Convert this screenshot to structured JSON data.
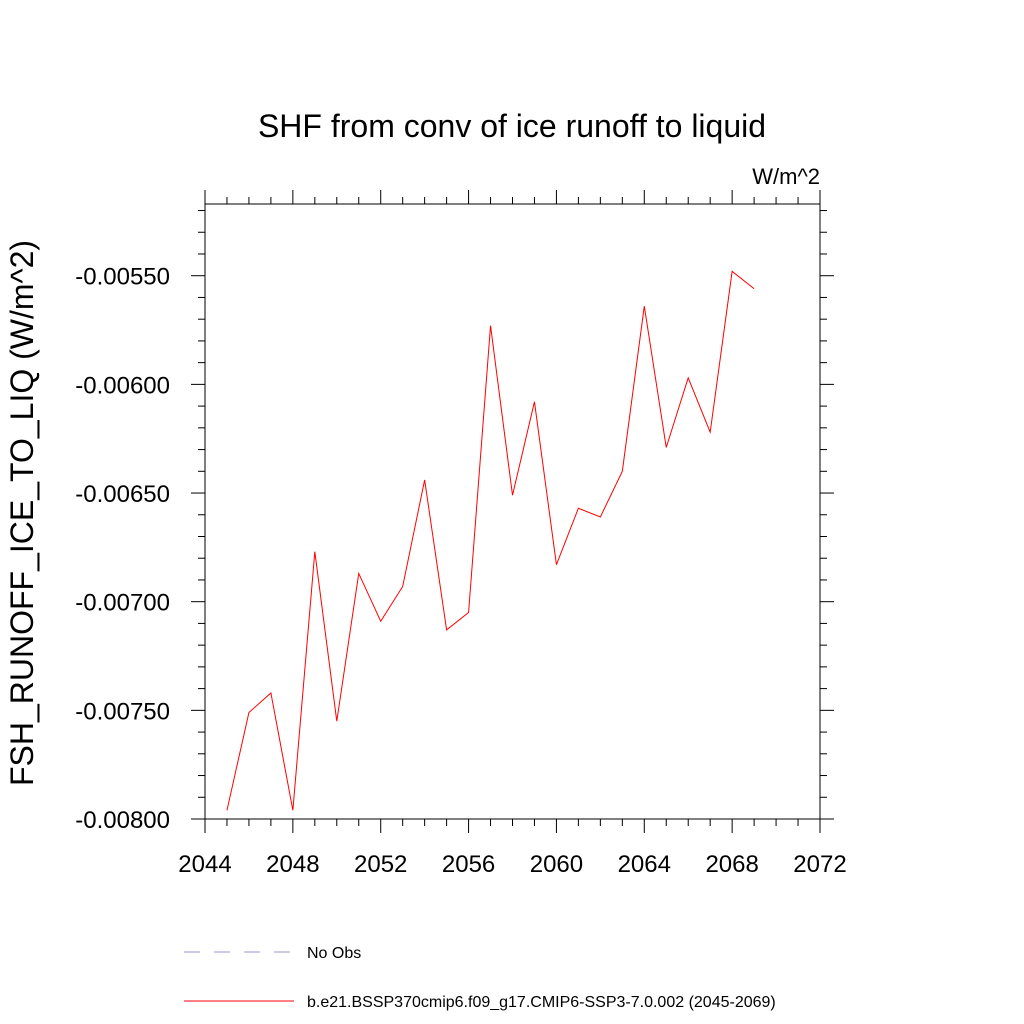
{
  "chart_data": {
    "type": "line",
    "title": "SHF from conv of ice runoff to liquid",
    "units_label": "W/m^2",
    "ylabel": "FSH_RUNOFF_ICE_TO_LIQ  (W/m^2)",
    "xlabel": "",
    "xlim": [
      2044,
      2072
    ],
    "ylim": [
      -0.008,
      -0.00517
    ],
    "x_ticks": [
      2044,
      2048,
      2052,
      2056,
      2060,
      2064,
      2068,
      2072
    ],
    "x_tick_labels": [
      "2044",
      "2048",
      "2052",
      "2056",
      "2060",
      "2064",
      "2068",
      "2072"
    ],
    "y_ticks": [
      -0.0055,
      -0.006,
      -0.0065,
      -0.007,
      -0.0075,
      -0.008
    ],
    "y_tick_labels": [
      "-0.00550",
      "-0.00600",
      "-0.00650",
      "-0.00700",
      "-0.00750",
      "-0.00800"
    ],
    "grid": false,
    "series": [
      {
        "name": "b.e21.BSSP370cmip6.f09_g17.CMIP6-SSP3-7.0.002 (2045-2069)",
        "color": "#ff0000",
        "x": [
          2045,
          2046,
          2047,
          2048,
          2049,
          2050,
          2051,
          2052,
          2053,
          2054,
          2055,
          2056,
          2057,
          2058,
          2059,
          2060,
          2061,
          2062,
          2063,
          2064,
          2065,
          2066,
          2067,
          2068,
          2069
        ],
        "y": [
          -0.00796,
          -0.00751,
          -0.00742,
          -0.00796,
          -0.00677,
          -0.00755,
          -0.00687,
          -0.00709,
          -0.00693,
          -0.00644,
          -0.00713,
          -0.00705,
          -0.00573,
          -0.00651,
          -0.00608,
          -0.00683,
          -0.00657,
          -0.00661,
          -0.0064,
          -0.00564,
          -0.00629,
          -0.00597,
          -0.00622,
          -0.00548,
          -0.00556
        ]
      }
    ],
    "legend": {
      "placement": "bottom",
      "entries": [
        {
          "label": "No Obs",
          "style": "dashed",
          "color": "#9a94c8"
        },
        {
          "label": "b.e21.BSSP370cmip6.f09_g17.CMIP6-SSP3-7.0.002 (2045-2069)",
          "style": "solid",
          "color": "#ff0000"
        }
      ]
    }
  }
}
